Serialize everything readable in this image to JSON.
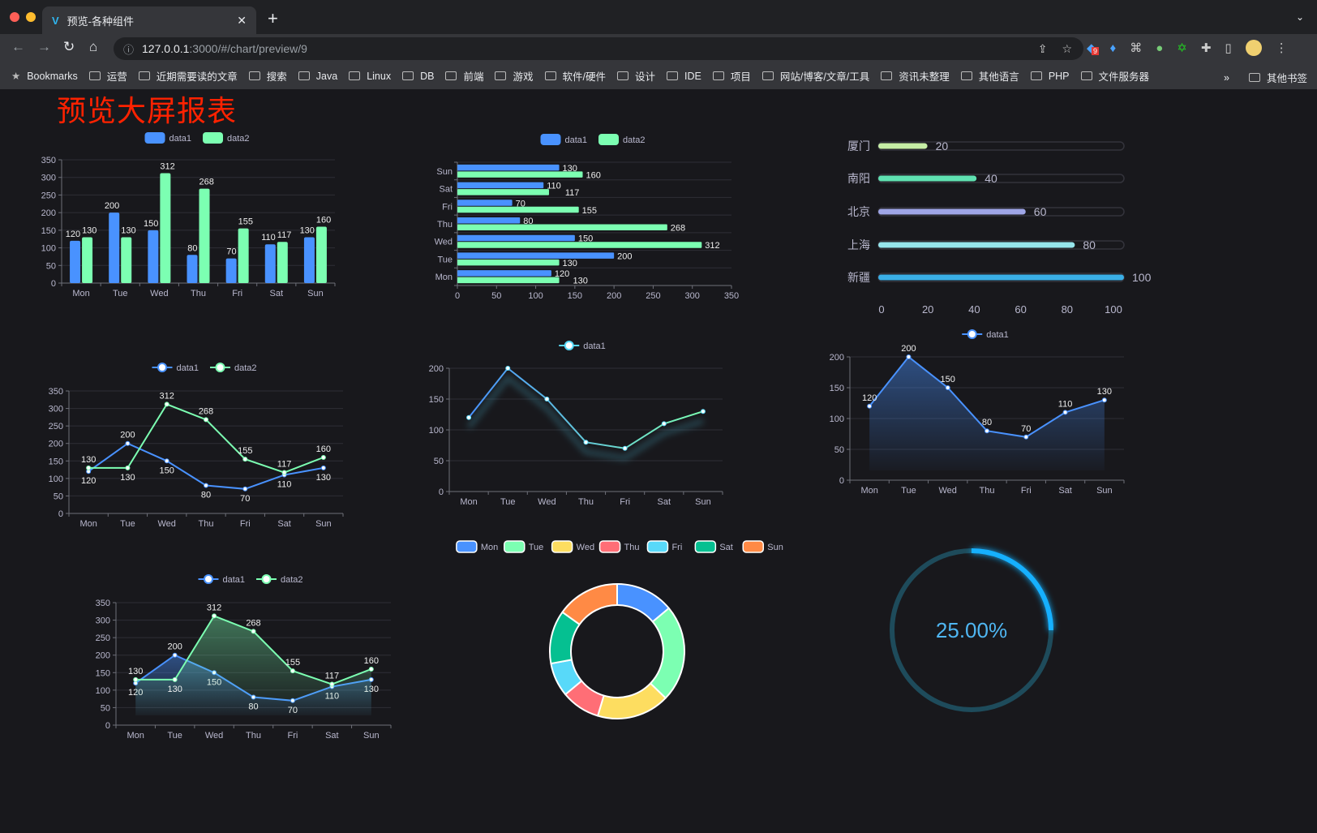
{
  "browser": {
    "tab_title": "预览-各种组件",
    "url_host": "127.0.0.1",
    "url_path": ":3000/#/chart/preview/9",
    "extension_badge": "9",
    "bookmarks": [
      "Bookmarks",
      "运营",
      "近期需要读的文章",
      "搜索",
      "Java",
      "Linux",
      "DB",
      "前端",
      "游戏",
      "软件/硬件",
      "设计",
      "IDE",
      "项目",
      "网站/博客/文章/工具",
      "资讯未整理",
      "其他语言",
      "PHP",
      "文件服务器"
    ],
    "bookmarks_overflow": "»",
    "other_bookmarks": "其他书签"
  },
  "page": {
    "title": "预览大屏报表"
  },
  "colors": {
    "blue": "#4992ff",
    "green": "#7cffb2",
    "yellow": "#fddd60",
    "red": "#ff6e76",
    "cyan": "#58d9f9",
    "teal": "#05c091",
    "orange": "#ff8a45",
    "title": "#ff2200"
  },
  "chart_data": [
    {
      "type": "bar",
      "categories": [
        "Mon",
        "Tue",
        "Wed",
        "Thu",
        "Fri",
        "Sat",
        "Sun"
      ],
      "yticks": [
        0,
        50,
        100,
        150,
        200,
        250,
        300,
        350
      ],
      "ylim": [
        0,
        350
      ],
      "legend": "top",
      "grid": true,
      "series": [
        {
          "name": "data1",
          "color": "#4992ff",
          "values": [
            120,
            200,
            150,
            80,
            70,
            110,
            130
          ]
        },
        {
          "name": "data2",
          "color": "#7cffb2",
          "values": [
            130,
            130,
            312,
            268,
            155,
            117,
            160
          ]
        }
      ]
    },
    {
      "type": "bar",
      "orientation": "horizontal",
      "categories": [
        "Mon",
        "Tue",
        "Wed",
        "Thu",
        "Fri",
        "Sat",
        "Sun"
      ],
      "xticks": [
        0,
        50,
        100,
        150,
        200,
        250,
        300,
        350
      ],
      "xlim": [
        0,
        350
      ],
      "legend": "top",
      "grid": true,
      "series": [
        {
          "name": "data1",
          "color": "#4992ff",
          "values": [
            120,
            200,
            150,
            80,
            70,
            110,
            130
          ]
        },
        {
          "name": "data2",
          "color": "#7cffb2",
          "values": [
            130,
            130,
            312,
            268,
            155,
            117,
            160
          ]
        }
      ]
    },
    {
      "type": "bar",
      "orientation": "horizontal",
      "style": "progress",
      "categories": [
        "厦门",
        "南阳",
        "北京",
        "上海",
        "新疆"
      ],
      "values": [
        20,
        40,
        60,
        80,
        100
      ],
      "colors": [
        "#c6eea5",
        "#5fe1b1",
        "#9ea5e6",
        "#96e5ec",
        "#3aaee6"
      ],
      "xticks": [
        0,
        20,
        40,
        60,
        80,
        100
      ],
      "xlim": [
        0,
        100
      ]
    },
    {
      "type": "line",
      "categories": [
        "Mon",
        "Tue",
        "Wed",
        "Thu",
        "Fri",
        "Sat",
        "Sun"
      ],
      "yticks": [
        0,
        50,
        100,
        150,
        200,
        250,
        300,
        350
      ],
      "ylim": [
        0,
        350
      ],
      "legend": "top",
      "grid": true,
      "labels": true,
      "series": [
        {
          "name": "data1",
          "color": "#4992ff",
          "values": [
            120,
            200,
            150,
            80,
            70,
            110,
            130
          ]
        },
        {
          "name": "data2",
          "color": "#7cffb2",
          "values": [
            130,
            130,
            312,
            268,
            155,
            117,
            160
          ]
        }
      ]
    },
    {
      "type": "line",
      "categories": [
        "Mon",
        "Tue",
        "Wed",
        "Thu",
        "Fri",
        "Sat",
        "Sun"
      ],
      "yticks": [
        0,
        50,
        100,
        150,
        200
      ],
      "ylim": [
        0,
        200
      ],
      "legend": "top",
      "grid": true,
      "labels": false,
      "gradient": [
        "#4992ff",
        "#7cffb2"
      ],
      "series": [
        {
          "name": "data1",
          "color": "#58d9f9",
          "values": [
            120,
            200,
            150,
            80,
            70,
            110,
            130
          ]
        }
      ]
    },
    {
      "type": "area",
      "categories": [
        "Mon",
        "Tue",
        "Wed",
        "Thu",
        "Fri",
        "Sat",
        "Sun"
      ],
      "yticks": [
        0,
        50,
        100,
        150,
        200
      ],
      "ylim": [
        0,
        200
      ],
      "legend": "top",
      "grid": true,
      "labels": true,
      "series": [
        {
          "name": "data1",
          "color": "#4992ff",
          "values": [
            120,
            200,
            150,
            80,
            70,
            110,
            130
          ]
        }
      ]
    },
    {
      "type": "area",
      "categories": [
        "Mon",
        "Tue",
        "Wed",
        "Thu",
        "Fri",
        "Sat",
        "Sun"
      ],
      "yticks": [
        0,
        50,
        100,
        150,
        200,
        250,
        300,
        350
      ],
      "ylim": [
        0,
        350
      ],
      "legend": "top",
      "grid": true,
      "labels": true,
      "series": [
        {
          "name": "data1",
          "color": "#4992ff",
          "values": [
            120,
            200,
            150,
            80,
            70,
            110,
            130
          ]
        },
        {
          "name": "data2",
          "color": "#7cffb2",
          "values": [
            130,
            130,
            312,
            268,
            155,
            117,
            160
          ]
        }
      ]
    },
    {
      "type": "pie",
      "donut": true,
      "legend": "top",
      "categories": [
        "Mon",
        "Tue",
        "Wed",
        "Thu",
        "Fri",
        "Sat",
        "Sun"
      ],
      "values": [
        120,
        200,
        150,
        80,
        70,
        110,
        130
      ],
      "colors": [
        "#4992ff",
        "#7cffb2",
        "#fddd60",
        "#ff6e76",
        "#58d9f9",
        "#05c091",
        "#ff8a45"
      ]
    },
    {
      "type": "gauge",
      "value": 25,
      "label": "25.00%",
      "color": "#12b0ff",
      "track_color": "#1e4b5b"
    }
  ]
}
